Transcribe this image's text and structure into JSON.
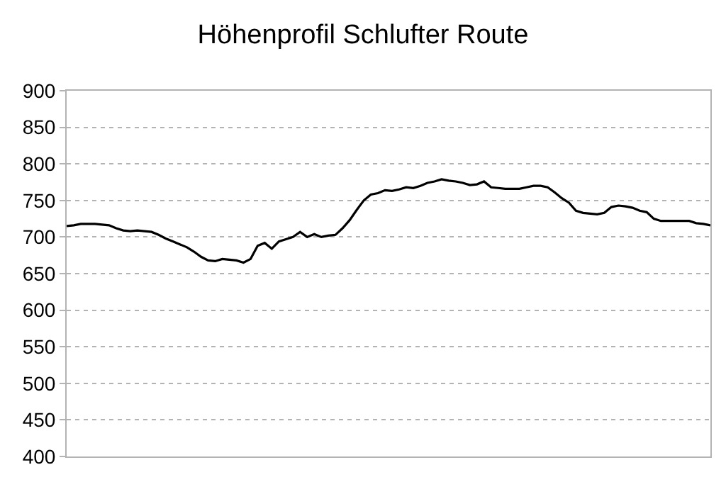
{
  "chart_data": {
    "type": "line",
    "title": "Höhenprofil Schlufter Route",
    "categories": [
      null,
      null,
      null,
      null,
      null,
      null,
      null,
      null,
      null,
      null,
      null,
      null,
      null,
      null,
      null,
      null,
      null,
      null,
      null,
      null,
      null,
      null,
      null,
      null,
      null,
      null,
      null,
      null,
      null,
      null,
      null,
      null,
      null,
      null,
      null,
      null,
      null,
      null,
      null,
      null,
      null,
      null,
      null,
      null,
      null,
      null,
      null,
      null,
      null,
      null,
      null,
      null,
      null,
      null,
      null,
      null,
      null,
      null,
      null,
      null,
      null,
      null,
      null,
      null,
      null,
      null,
      null,
      null,
      null,
      null,
      null,
      null,
      null,
      null,
      null,
      null,
      null,
      null,
      null,
      null,
      null,
      null,
      null,
      null,
      null,
      null,
      null,
      null,
      null,
      null,
      null,
      null
    ],
    "series": [
      {
        "color": "#000000",
        "values": [
          715,
          716,
          718,
          718,
          718,
          717,
          716,
          712,
          709,
          708,
          709,
          708,
          707,
          703,
          698,
          694,
          690,
          686,
          680,
          673,
          668,
          667,
          670,
          669,
          668,
          665,
          670,
          688,
          692,
          684,
          694,
          697,
          700,
          707,
          700,
          704,
          700,
          702,
          703,
          712,
          723,
          737,
          750,
          758,
          760,
          764,
          763,
          765,
          768,
          767,
          770,
          774,
          776,
          779,
          777,
          776,
          774,
          771,
          772,
          776,
          768,
          767,
          766,
          766,
          766,
          768,
          770,
          770,
          768,
          761,
          753,
          747,
          736,
          733,
          732,
          731,
          733,
          741,
          743,
          742,
          740,
          736,
          734,
          725,
          722,
          722,
          722,
          722,
          722,
          719,
          718,
          716
        ]
      }
    ],
    "ylim": [
      400,
      900
    ],
    "yticks": [
      400,
      450,
      500,
      550,
      600,
      650,
      700,
      750,
      800,
      850,
      900
    ],
    "grid": "y",
    "legend": false,
    "marker": "none",
    "line_style": "solid"
  }
}
